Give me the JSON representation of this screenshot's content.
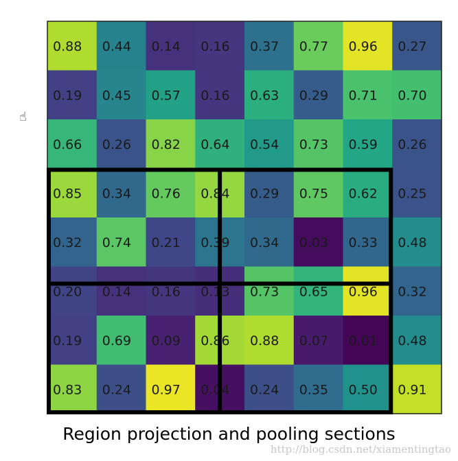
{
  "caption": "Region projection and pooling sections",
  "watermark": "http://blog.csdn.net/xiamentingtao",
  "cursor_icon": "hand-cursor-icon",
  "grid": {
    "rows": 8,
    "cols": 8,
    "values": [
      [
        "0.88",
        "0.44",
        "0.14",
        "0.16",
        "0.37",
        "0.77",
        "0.96",
        "0.27"
      ],
      [
        "0.19",
        "0.45",
        "0.57",
        "0.16",
        "0.63",
        "0.29",
        "0.71",
        "0.70"
      ],
      [
        "0.66",
        "0.26",
        "0.82",
        "0.64",
        "0.54",
        "0.73",
        "0.59",
        "0.26"
      ],
      [
        "0.85",
        "0.34",
        "0.76",
        "0.84",
        "0.29",
        "0.75",
        "0.62",
        "0.25"
      ],
      [
        "0.32",
        "0.74",
        "0.21",
        "0.39",
        "0.34",
        "0.03",
        "0.33",
        "0.48"
      ],
      [
        "0.20",
        "0.14",
        "0.16",
        "0.13",
        "0.73",
        "0.65",
        "0.96",
        "0.32"
      ],
      [
        "0.19",
        "0.69",
        "0.09",
        "0.86",
        "0.88",
        "0.07",
        "0.01",
        "0.48"
      ],
      [
        "0.83",
        "0.24",
        "0.97",
        "0.04",
        "0.24",
        "0.35",
        "0.50",
        "0.91"
      ]
    ],
    "colormap": "viridis"
  },
  "region": {
    "row_start": 3,
    "row_end": 8,
    "col_start": 0,
    "col_end": 7,
    "split_row": 5.35,
    "split_col": 3.5,
    "color": "#000000"
  }
}
